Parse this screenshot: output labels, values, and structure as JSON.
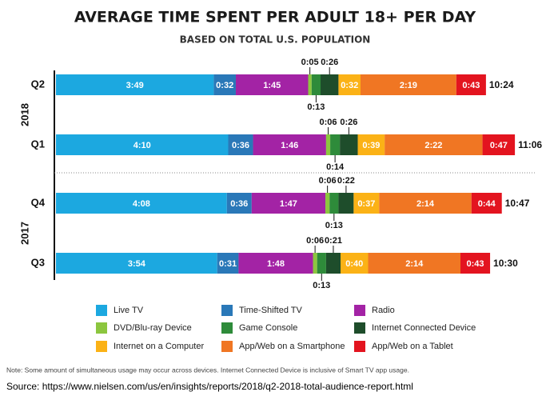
{
  "chart_data": {
    "type": "stacked-bar-horizontal",
    "title": "AVERAGE TIME SPENT PER ADULT 18+ PER DAY",
    "subtitle": "BASED ON TOTAL U.S. POPULATION",
    "groups": [
      {
        "name": "2018",
        "categories": [
          "Q2",
          "Q1"
        ]
      },
      {
        "name": "2017",
        "categories": [
          "Q4",
          "Q3"
        ]
      }
    ],
    "series": [
      {
        "name": "Live TV",
        "color": "#1ca8e0",
        "values": [
          229,
          250,
          248,
          234
        ],
        "value_labels": [
          "3:49",
          "4:10",
          "4:08",
          "3:54"
        ]
      },
      {
        "name": "Time-Shifted TV",
        "color": "#2a78b8",
        "values": [
          32,
          36,
          36,
          31
        ],
        "value_labels": [
          "0:32",
          "0:36",
          "0:36",
          "0:31"
        ]
      },
      {
        "name": "Radio",
        "color": "#a323a5",
        "values": [
          105,
          106,
          107,
          108
        ],
        "value_labels": [
          "1:45",
          "1:46",
          "1:47",
          "1:48"
        ]
      },
      {
        "name": "DVD/Blu-ray Device",
        "color": "#8cc63f",
        "values": [
          5,
          6,
          6,
          6
        ],
        "value_labels": [
          "0:05",
          "0:06",
          "0:06",
          "0:06"
        ]
      },
      {
        "name": "Game Console",
        "color": "#2e8b3a",
        "values": [
          13,
          14,
          13,
          13
        ],
        "value_labels": [
          "0:13",
          "0:14",
          "0:13",
          "0:13"
        ]
      },
      {
        "name": "Internet Connected Device",
        "color": "#1e4d2b",
        "values": [
          26,
          26,
          22,
          21
        ],
        "value_labels": [
          "0:26",
          "0:26",
          "0:22",
          "0:21"
        ]
      },
      {
        "name": "Internet on a Computer",
        "color": "#fbb216",
        "values": [
          32,
          39,
          37,
          40
        ],
        "value_labels": [
          "0:32",
          "0:39",
          "0:37",
          "0:40"
        ]
      },
      {
        "name": "App/Web on a Smartphone",
        "color": "#f07623",
        "values": [
          139,
          142,
          134,
          134
        ],
        "value_labels": [
          "2:19",
          "2:22",
          "2:14",
          "2:14"
        ]
      },
      {
        "name": "App/Web on a Tablet",
        "color": "#e3141f",
        "values": [
          43,
          47,
          44,
          43
        ],
        "value_labels": [
          "0:43",
          "0:47",
          "0:44",
          "0:43"
        ]
      }
    ],
    "totals": [
      624,
      666,
      647,
      630
    ],
    "total_labels": [
      "10:24",
      "11:06",
      "10:47",
      "10:30"
    ],
    "note": "Note: Some amount of simultaneous usage may occur across devices. Internet Connected Device is inclusive of Smart TV app usage.",
    "source": "Source: https://www.nielsen.com/us/en/insights/reports/2018/q2-2018-total-audience-report.html"
  }
}
